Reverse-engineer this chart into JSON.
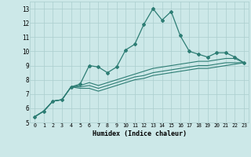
{
  "xlabel": "Humidex (Indice chaleur)",
  "x_values": [
    0,
    1,
    2,
    3,
    4,
    5,
    6,
    7,
    8,
    9,
    10,
    11,
    12,
    13,
    14,
    15,
    16,
    17,
    18,
    19,
    20,
    21,
    22,
    23
  ],
  "line1_y": [
    5.4,
    5.8,
    6.5,
    6.6,
    7.5,
    7.7,
    9.0,
    8.9,
    8.5,
    8.9,
    10.1,
    10.5,
    11.9,
    13.0,
    12.2,
    12.8,
    11.1,
    10.0,
    9.8,
    9.6,
    9.9,
    9.9,
    9.6,
    9.2
  ],
  "line2_y": [
    5.4,
    5.8,
    6.5,
    6.6,
    7.5,
    7.6,
    7.8,
    7.6,
    7.8,
    8.0,
    8.2,
    8.4,
    8.6,
    8.8,
    8.9,
    9.0,
    9.1,
    9.2,
    9.3,
    9.3,
    9.4,
    9.5,
    9.5,
    9.2
  ],
  "line3_y": [
    5.4,
    5.8,
    6.5,
    6.6,
    7.5,
    7.5,
    7.6,
    7.4,
    7.6,
    7.8,
    8.0,
    8.2,
    8.3,
    8.5,
    8.6,
    8.7,
    8.8,
    8.9,
    9.0,
    9.0,
    9.1,
    9.2,
    9.2,
    9.2
  ],
  "line4_y": [
    5.4,
    5.8,
    6.5,
    6.6,
    7.5,
    7.4,
    7.4,
    7.2,
    7.4,
    7.6,
    7.8,
    8.0,
    8.1,
    8.3,
    8.4,
    8.5,
    8.6,
    8.7,
    8.8,
    8.8,
    8.9,
    9.0,
    9.1,
    9.2
  ],
  "line_color": "#2d7d74",
  "bg_color": "#cce8e8",
  "grid_color": "#aacece",
  "xlim": [
    -0.5,
    23.5
  ],
  "ylim": [
    5,
    13.5
  ],
  "yticks": [
    5,
    6,
    7,
    8,
    9,
    10,
    11,
    12,
    13
  ],
  "xticks": [
    0,
    1,
    2,
    3,
    4,
    5,
    6,
    7,
    8,
    9,
    10,
    11,
    12,
    13,
    14,
    15,
    16,
    17,
    18,
    19,
    20,
    21,
    22,
    23
  ]
}
